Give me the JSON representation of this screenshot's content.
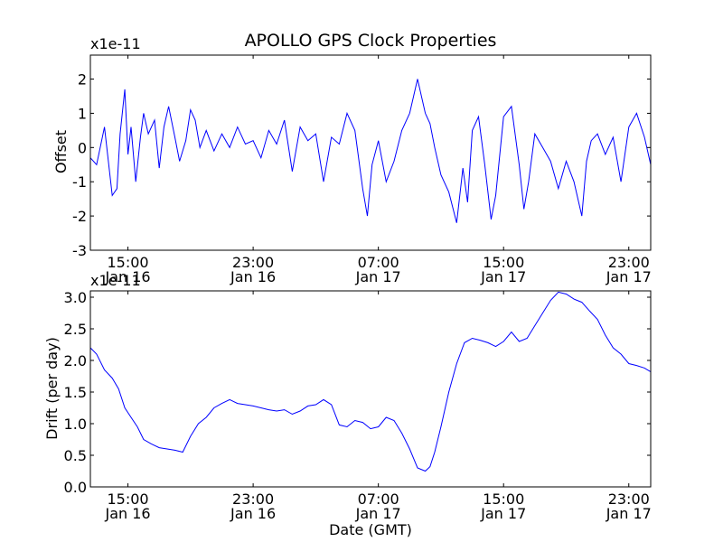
{
  "chart_data": [
    {
      "type": "line",
      "title": "APOLLO GPS Clock Properties",
      "xlabel": "",
      "ylabel": "Offset",
      "scale_label": "x1e-11",
      "ylim": [
        -3,
        2.7
      ],
      "yticks": [
        -3,
        -2,
        -1,
        0,
        1,
        2
      ],
      "ytick_labels": [
        "-3",
        "-2",
        "-1",
        "0",
        "1",
        "2"
      ],
      "xlim_hours": [
        12.6,
        48.4
      ],
      "xticks": [
        {
          "hour": 15,
          "time": "15:00",
          "date": "Jan 16"
        },
        {
          "hour": 23,
          "time": "23:00",
          "date": "Jan 16"
        },
        {
          "hour": 31,
          "time": "07:00",
          "date": "Jan 17"
        },
        {
          "hour": 39,
          "time": "15:00",
          "date": "Jan 17"
        },
        {
          "hour": 47,
          "time": "23:00",
          "date": "Jan 17"
        }
      ],
      "series": [
        {
          "name": "Offset",
          "color": "#0000ff",
          "x_hours": [
            12.6,
            13.0,
            13.5,
            14.0,
            14.3,
            14.5,
            14.8,
            15.0,
            15.2,
            15.5,
            15.8,
            16.0,
            16.3,
            16.7,
            17.0,
            17.3,
            17.6,
            18.0,
            18.3,
            18.7,
            19.0,
            19.3,
            19.6,
            20.0,
            20.5,
            21.0,
            21.5,
            22.0,
            22.5,
            23.0,
            23.5,
            24.0,
            24.5,
            25.0,
            25.5,
            26.0,
            26.5,
            27.0,
            27.5,
            28.0,
            28.5,
            29.0,
            29.5,
            30.0,
            30.3,
            30.6,
            31.0,
            31.5,
            32.0,
            32.5,
            33.0,
            33.5,
            34.0,
            34.3,
            34.6,
            35.0,
            35.5,
            36.0,
            36.4,
            36.7,
            37.0,
            37.4,
            37.8,
            38.2,
            38.5,
            39.0,
            39.5,
            40.0,
            40.3,
            40.6,
            41.0,
            41.5,
            42.0,
            42.5,
            43.0,
            43.5,
            44.0,
            44.3,
            44.6,
            45.0,
            45.5,
            46.0,
            46.5,
            47.0,
            47.5,
            48.0,
            48.4
          ],
          "values": [
            -0.3,
            -0.5,
            0.6,
            -1.4,
            -1.2,
            0.4,
            1.7,
            -0.2,
            0.6,
            -1.0,
            0.3,
            1.0,
            0.4,
            0.8,
            -0.6,
            0.6,
            1.2,
            0.3,
            -0.4,
            0.2,
            1.1,
            0.8,
            0.0,
            0.5,
            -0.1,
            0.4,
            0.0,
            0.6,
            0.1,
            0.2,
            -0.3,
            0.5,
            0.1,
            0.8,
            -0.7,
            0.6,
            0.2,
            0.4,
            -1.0,
            0.3,
            0.1,
            1.0,
            0.5,
            -1.2,
            -2.0,
            -0.5,
            0.2,
            -1.0,
            -0.4,
            0.5,
            1.0,
            2.0,
            1.0,
            0.7,
            0.0,
            -0.8,
            -1.3,
            -2.2,
            -0.6,
            -1.6,
            0.5,
            0.9,
            -0.5,
            -2.1,
            -1.4,
            0.9,
            1.2,
            -0.5,
            -1.8,
            -1.0,
            0.4,
            0.0,
            -0.4,
            -1.2,
            -0.4,
            -1.0,
            -2.0,
            -0.4,
            0.2,
            0.4,
            -0.2,
            0.3,
            -1.0,
            0.6,
            1.0,
            0.3,
            -0.5
          ]
        }
      ]
    },
    {
      "type": "line",
      "title": "",
      "xlabel": "Date (GMT)",
      "ylabel": "Drift (per day)",
      "scale_label": "x1e-11",
      "ylim": [
        0.0,
        3.1
      ],
      "yticks": [
        0.0,
        0.5,
        1.0,
        1.5,
        2.0,
        2.5,
        3.0
      ],
      "ytick_labels": [
        "0.0",
        "0.5",
        "1.0",
        "1.5",
        "2.0",
        "2.5",
        "3.0"
      ],
      "xlim_hours": [
        12.6,
        48.4
      ],
      "xticks": [
        {
          "hour": 15,
          "time": "15:00",
          "date": "Jan 16"
        },
        {
          "hour": 23,
          "time": "23:00",
          "date": "Jan 16"
        },
        {
          "hour": 31,
          "time": "07:00",
          "date": "Jan 17"
        },
        {
          "hour": 39,
          "time": "15:00",
          "date": "Jan 17"
        },
        {
          "hour": 47,
          "time": "23:00",
          "date": "Jan 17"
        }
      ],
      "series": [
        {
          "name": "Drift",
          "color": "#0000ff",
          "x_hours": [
            12.6,
            13.0,
            13.5,
            14.0,
            14.4,
            14.8,
            15.2,
            15.6,
            16.0,
            16.5,
            17.0,
            17.5,
            18.0,
            18.5,
            19.0,
            19.5,
            20.0,
            20.5,
            21.0,
            21.5,
            22.0,
            22.5,
            23.0,
            23.5,
            24.0,
            24.5,
            25.0,
            25.5,
            26.0,
            26.5,
            27.0,
            27.5,
            28.0,
            28.5,
            29.0,
            29.5,
            30.0,
            30.5,
            31.0,
            31.5,
            32.0,
            32.5,
            33.0,
            33.5,
            34.0,
            34.3,
            34.6,
            35.0,
            35.5,
            36.0,
            36.5,
            37.0,
            37.5,
            38.0,
            38.5,
            39.0,
            39.5,
            40.0,
            40.5,
            41.0,
            41.5,
            42.0,
            42.5,
            43.0,
            43.5,
            44.0,
            44.5,
            45.0,
            45.5,
            46.0,
            46.5,
            47.0,
            47.5,
            48.0,
            48.4
          ],
          "values": [
            2.2,
            2.1,
            1.85,
            1.72,
            1.55,
            1.25,
            1.1,
            0.95,
            0.75,
            0.68,
            0.62,
            0.6,
            0.58,
            0.55,
            0.8,
            1.0,
            1.1,
            1.25,
            1.32,
            1.38,
            1.32,
            1.3,
            1.28,
            1.25,
            1.22,
            1.2,
            1.22,
            1.15,
            1.2,
            1.28,
            1.3,
            1.38,
            1.3,
            0.98,
            0.95,
            1.05,
            1.02,
            0.92,
            0.95,
            1.1,
            1.05,
            0.85,
            0.6,
            0.3,
            0.25,
            0.32,
            0.55,
            0.95,
            1.5,
            1.95,
            2.28,
            2.35,
            2.32,
            2.28,
            2.22,
            2.3,
            2.45,
            2.3,
            2.35,
            2.55,
            2.75,
            2.95,
            3.08,
            3.05,
            2.97,
            2.92,
            2.78,
            2.65,
            2.4,
            2.2,
            2.1,
            1.95,
            1.92,
            1.88,
            1.82
          ]
        }
      ]
    }
  ]
}
